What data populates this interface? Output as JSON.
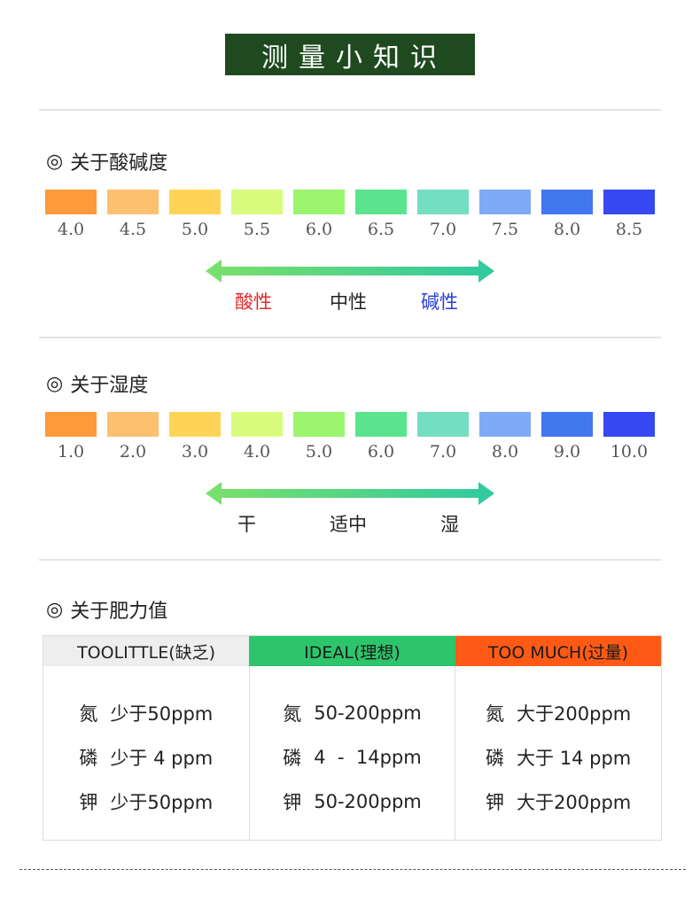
{
  "title": "测量小知识",
  "sections": {
    "ph": {
      "heading_mark": "◎",
      "heading": "关于酸碱度",
      "ticks": [
        "4.0",
        "4.5",
        "5.0",
        "5.5",
        "6.0",
        "6.5",
        "7.0",
        "7.5",
        "8.0",
        "8.5"
      ],
      "colors": [
        "#fd9a3c",
        "#fdc06e",
        "#fed456",
        "#d9fb7d",
        "#9bf56f",
        "#5ae48d",
        "#74dec1",
        "#7eaaf7",
        "#4277ef",
        "#3548f1"
      ],
      "labels": {
        "left": "酸性",
        "center": "中性",
        "right": "碱性"
      },
      "label_colors": {
        "left": "#e02b2b",
        "center": "#222222",
        "right": "#2a3fd6"
      }
    },
    "humidity": {
      "heading_mark": "◎",
      "heading": "关于湿度",
      "ticks": [
        "1.0",
        "2.0",
        "3.0",
        "4.0",
        "5.0",
        "6.0",
        "7.0",
        "8.0",
        "9.0",
        "10.0"
      ],
      "labels": {
        "left": "干",
        "center": "适中",
        "right": "湿"
      }
    },
    "fertility": {
      "heading_mark": "◎",
      "heading": "关于肥力值",
      "columns": [
        {
          "header": "TOOLITTLE(缺乏)",
          "header_bg": "#eeeeee",
          "header_color": "#222222",
          "rows": [
            {
              "element": "氮",
              "value": "少于50ppm"
            },
            {
              "element": "磷",
              "value": "少于 4 ppm"
            },
            {
              "element": "钾",
              "value": "少于50ppm"
            }
          ]
        },
        {
          "header": "IDEAL(理想)",
          "header_bg": "#2dc56b",
          "header_color": "#1a1a1a",
          "rows": [
            {
              "element": "氮",
              "value": "50-200ppm"
            },
            {
              "element": "磷",
              "value": "4  -  14ppm"
            },
            {
              "element": "钾",
              "value": "50-200ppm"
            }
          ]
        },
        {
          "header": "TOO MUCH(过量)",
          "header_bg": "#fe5a16",
          "header_color": "#1a1a1a",
          "rows": [
            {
              "element": "氮",
              "value": "大于200ppm"
            },
            {
              "element": "磷",
              "value": "大于 14 ppm"
            },
            {
              "element": "钾",
              "value": "大于200ppm"
            }
          ]
        }
      ]
    }
  },
  "arrow_gradient": [
    "#7be06a",
    "#2fc9a0"
  ]
}
